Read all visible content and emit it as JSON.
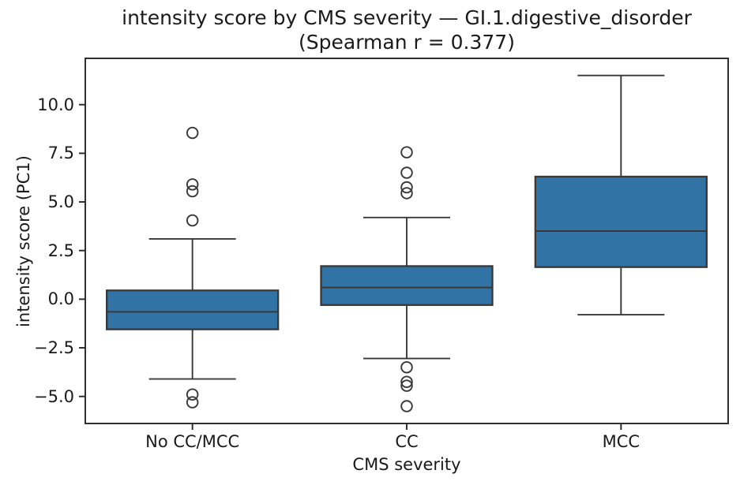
{
  "title": {
    "line1": "intensity score by CMS severity — GI.1.digestive_disorder",
    "line2": "(Spearman r = 0.377)"
  },
  "axes": {
    "ylabel": "intensity score (PC1)",
    "xlabel": "CMS severity"
  },
  "chart_data": {
    "type": "box",
    "title": "intensity score by CMS severity — GI.1.digestive_disorder (Spearman r = 0.377)",
    "subtitle": "(Spearman r = 0.377)",
    "spearman_r": 0.377,
    "xlabel": "CMS severity",
    "ylabel": "intensity score (PC1)",
    "categories": [
      "No CC/MCC",
      "CC",
      "MCC"
    ],
    "ylim": [
      -6.39,
      12.38
    ],
    "grid": false,
    "legend": "none",
    "yticks": [
      {
        "value": 10.0,
        "label": "10.0"
      },
      {
        "value": 7.5,
        "label": "7.5"
      },
      {
        "value": 5.0,
        "label": "5.0"
      },
      {
        "value": 2.5,
        "label": "2.5"
      },
      {
        "value": 0.0,
        "label": "0.0"
      },
      {
        "value": -2.5,
        "label": "−2.5"
      },
      {
        "value": -5.0,
        "label": "−5.0"
      }
    ],
    "series": [
      {
        "category": "No CC/MCC",
        "whisker_low": -4.1,
        "q1": -1.55,
        "median": -0.65,
        "q3": 0.45,
        "whisker_high": 3.1,
        "outliers": [
          8.55,
          5.9,
          5.55,
          4.05,
          -4.9,
          -5.3
        ]
      },
      {
        "category": "CC",
        "whisker_low": -3.05,
        "q1": -0.3,
        "median": 0.6,
        "q3": 1.7,
        "whisker_high": 4.2,
        "outliers": [
          7.55,
          6.5,
          5.75,
          5.45,
          -3.5,
          -4.25,
          -4.45,
          -5.5
        ]
      },
      {
        "category": "MCC",
        "whisker_low": -0.8,
        "q1": 1.65,
        "median": 3.5,
        "q3": 6.3,
        "whisker_high": 11.5,
        "outliers": []
      }
    ],
    "colors": {
      "box_fill": "#3173A4",
      "box_edge": "#383838",
      "spine": "#262626",
      "text": "#1a1a1a",
      "background": "#ffffff"
    }
  }
}
